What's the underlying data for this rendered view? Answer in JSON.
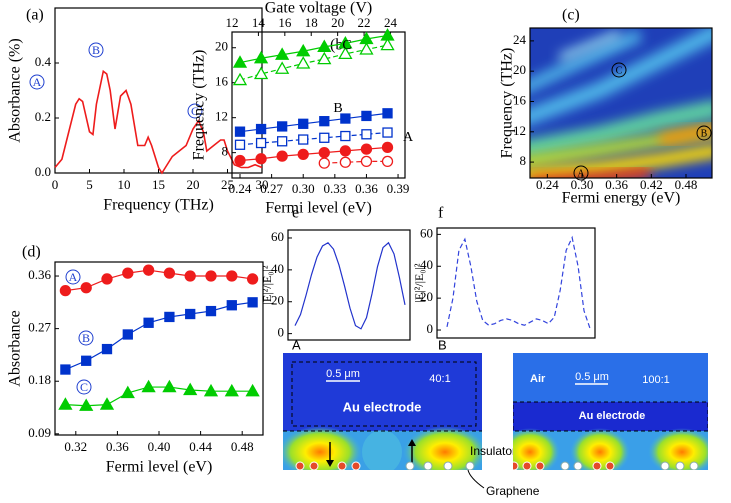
{
  "chart_data": [
    {
      "type": "line",
      "panel_label": "(a)",
      "xlabel": "Frequency (THz)",
      "ylabel": "Absorbance (%)",
      "x": [
        0,
        1,
        2,
        3,
        3.5,
        4,
        5,
        5.5,
        6,
        7,
        7.5,
        8,
        8.7,
        9.5,
        10.3,
        11,
        12,
        13,
        13.5,
        14,
        15,
        15.5,
        16,
        17,
        18,
        19,
        20,
        20.8,
        21.5,
        22,
        23,
        24,
        24.5,
        25,
        26,
        27,
        28,
        29,
        30
      ],
      "values": [
        0.02,
        0.05,
        0.15,
        0.25,
        0.27,
        0.26,
        0.15,
        0.14,
        0.25,
        0.37,
        0.36,
        0.3,
        0.16,
        0.28,
        0.3,
        0.25,
        0.1,
        0.1,
        0.13,
        0.1,
        0.02,
        0,
        0.02,
        0.06,
        0.08,
        0.1,
        0.16,
        0.19,
        0.15,
        0.08,
        0.1,
        0.12,
        0.12,
        0.08,
        0.03,
        0.02,
        0.02,
        0.03,
        0.02
      ],
      "color": "#ee1c1c",
      "xlim": [
        0,
        30
      ],
      "xticks": [
        0,
        5,
        10,
        15,
        20,
        25,
        30
      ],
      "ylim": [
        0,
        0.6
      ],
      "yticks": [
        {
          "value": 0,
          "label": "0.0"
        },
        0.2,
        0.4
      ],
      "annotations": [
        "A",
        "B",
        "C"
      ],
      "annotation_circled": true
    },
    {
      "type": "line",
      "panel_label": "(b)",
      "xlabel": "Fermi level (eV)",
      "ylabel": "Frequency (THz)",
      "x2label": "Gate voltage (V)",
      "x": [
        0.24,
        0.26,
        0.28,
        0.3,
        0.32,
        0.34,
        0.36,
        0.38
      ],
      "series": [
        {
          "color": "#00cc00",
          "marker": "triangle",
          "filled": true,
          "line": "solid",
          "values": [
            18.3,
            18.8,
            19.2,
            19.6,
            20.1,
            20.5,
            21,
            21.4
          ]
        },
        {
          "color": "#00cc00",
          "marker": "triangle",
          "filled": false,
          "line": "dashed",
          "values": [
            16.3,
            17,
            17.6,
            18.2,
            18.7,
            19.3,
            19.8,
            20.3
          ]
        },
        {
          "color": "#0033cc",
          "marker": "square",
          "filled": true,
          "line": "solid",
          "values": [
            10.4,
            10.7,
            11,
            11.3,
            11.6,
            11.9,
            12.2,
            12.5
          ]
        },
        {
          "color": "#0033cc",
          "marker": "square",
          "filled": false,
          "line": "dashed",
          "values": [
            8.9,
            9.1,
            9.3,
            9.5,
            9.7,
            9.9,
            10.1,
            10.3
          ]
        },
        {
          "color": "#ee1c1c",
          "marker": "circle",
          "filled": true,
          "line": "solid",
          "values": [
            7.1,
            7.3,
            7.6,
            7.8,
            8,
            8.2,
            8.4,
            8.6
          ]
        },
        {
          "color": "#ee1c1c",
          "marker": "circle",
          "filled": false,
          "line": "dashed",
          "values": [
            null,
            null,
            null,
            null,
            6.8,
            6.9,
            7,
            7
          ]
        }
      ],
      "xlim": [
        0.2324,
        0.3966
      ],
      "xticks": [
        0.24,
        0.27,
        {
          "value": 0.3,
          "label": "0.30"
        },
        0.33,
        0.36,
        0.39
      ],
      "x2lim": [
        12,
        25.1
      ],
      "x2ticks": [
        12,
        14,
        16,
        18,
        20,
        22,
        24
      ],
      "ylim": [
        5.1,
        21.8
      ],
      "yticks": [
        8,
        12,
        16,
        20
      ],
      "annotations": [
        "C",
        "B",
        "A"
      ],
      "annotation_circled": false
    },
    {
      "type": "heatmap",
      "panel_label": "(c)",
      "xlabel": "Fermi energy (eV)",
      "ylabel": "Frequency (THz)",
      "xlim": [
        0.21,
        0.525
      ],
      "xticks": [
        0.24,
        {
          "value": 0.3,
          "label": "0.30"
        },
        0.36,
        0.42,
        0.48
      ],
      "ylim": [
        5.9,
        25.7
      ],
      "yticks": [
        8,
        12,
        16,
        20,
        24
      ],
      "annotations": [
        "A",
        "B",
        "C"
      ],
      "annotation_circled": true
    },
    {
      "type": "line",
      "panel_label": "(d)",
      "xlabel": "Fermi level (eV)",
      "ylabel": "Absorbance",
      "x": [
        0.31,
        0.33,
        0.35,
        0.37,
        0.39,
        0.41,
        0.43,
        0.45,
        0.47,
        0.49
      ],
      "series": [
        {
          "color": "#ee1c1c",
          "marker": "circle",
          "filled": true,
          "line": "solid",
          "values": [
            0.335,
            0.34,
            0.355,
            0.365,
            0.37,
            0.365,
            0.36,
            0.36,
            0.36,
            0.355
          ]
        },
        {
          "color": "#0033cc",
          "marker": "square",
          "filled": true,
          "line": "solid",
          "values": [
            0.2,
            0.215,
            0.235,
            0.26,
            0.28,
            0.29,
            0.295,
            0.3,
            0.31,
            0.315
          ]
        },
        {
          "color": "#00cc00",
          "marker": "triangle",
          "filled": true,
          "line": "solid",
          "values": [
            0.14,
            0.138,
            0.14,
            0.16,
            0.17,
            0.17,
            0.165,
            0.163,
            0.163,
            0.163
          ]
        }
      ],
      "xlim": [
        0.3,
        0.5
      ],
      "xticks": [
        0.32,
        0.36,
        {
          "value": 0.4,
          "label": "0.40"
        },
        0.44,
        0.48
      ],
      "ylim": [
        0.088,
        0.384
      ],
      "yticks": [
        0.09,
        0.18,
        0.27,
        0.36
      ],
      "annotations": [
        "A",
        "B",
        "C"
      ],
      "annotation_circled": true
    },
    {
      "type": "line",
      "panel_label": "e",
      "corner_label": "A",
      "ylabel": "|E|²/|E₀|²",
      "values": [
        5,
        12,
        24,
        37,
        48,
        55,
        57,
        53,
        43,
        30,
        16,
        5,
        3,
        10,
        25,
        42,
        54,
        57,
        50,
        35,
        18
      ],
      "color": "#2233cc",
      "line": "solid",
      "ylim": [
        -4,
        65
      ],
      "yticks": [
        0,
        20,
        40,
        60
      ]
    },
    {
      "type": "line",
      "panel_label": "f",
      "corner_label": "B",
      "ylabel": "|E|²/|E₀|²",
      "values": [
        2,
        20,
        50,
        57,
        40,
        18,
        6,
        3,
        4,
        6,
        7,
        6,
        4,
        3,
        5,
        7,
        6,
        4,
        8,
        25,
        50,
        58,
        40,
        12,
        1
      ],
      "color": "#3344dd",
      "line": "dashed",
      "ylim": [
        -5,
        64
      ],
      "yticks": [
        0,
        20,
        40,
        60
      ]
    }
  ],
  "field_maps": [
    {
      "scale": "0.5 μm",
      "ratio": "40:1",
      "electrode": "Au electrode",
      "insulator": "Insulator",
      "graphene": "Graphene"
    },
    {
      "air": "Air",
      "scale": "0.5 μm",
      "ratio": "100:1",
      "electrode": "Au electrode"
    }
  ]
}
